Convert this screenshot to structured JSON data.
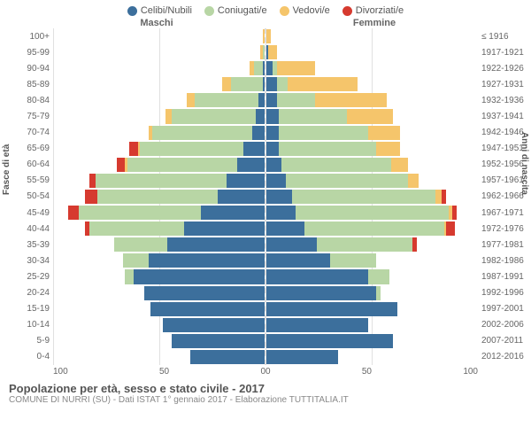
{
  "legend": [
    {
      "label": "Celibi/Nubili",
      "color": "#3c6f9c"
    },
    {
      "label": "Coniugati/e",
      "color": "#b8d6a5"
    },
    {
      "label": "Vedovi/e",
      "color": "#f5c56b"
    },
    {
      "label": "Divorziati/e",
      "color": "#d63a2f"
    }
  ],
  "headers": {
    "left": "Maschi",
    "right": "Femmine"
  },
  "axis_left_title": "Fasce di età",
  "axis_right_title": "Anni di nascita",
  "x_max": 100,
  "x_ticks_left": [
    "100",
    "50",
    "0"
  ],
  "x_ticks_right": [
    "0",
    "50",
    "100"
  ],
  "footer_title": "Popolazione per età, sesso e stato civile - 2017",
  "footer_sub": "COMUNE DI NURRI (SU) - Dati ISTAT 1° gennaio 2017 - Elaborazione TUTTITALIA.IT",
  "age_labels": [
    "100+",
    "95-99",
    "90-94",
    "85-89",
    "80-84",
    "75-79",
    "70-74",
    "65-69",
    "60-64",
    "55-59",
    "50-54",
    "45-49",
    "40-44",
    "35-39",
    "30-34",
    "25-29",
    "20-24",
    "15-19",
    "10-14",
    "5-9",
    "0-4"
  ],
  "birth_labels": [
    "≤ 1916",
    "1917-1921",
    "1922-1926",
    "1927-1931",
    "1932-1936",
    "1937-1941",
    "1942-1946",
    "1947-1951",
    "1952-1956",
    "1957-1961",
    "1962-1966",
    "1967-1971",
    "1972-1976",
    "1977-1981",
    "1982-1986",
    "1987-1991",
    "1992-1996",
    "1997-2001",
    "2002-2006",
    "2007-2011",
    "2012-2016"
  ],
  "pyramid": [
    {
      "m": {
        "cel": 0,
        "con": 0,
        "ved": 1,
        "div": 0
      },
      "f": {
        "cel": 0,
        "con": 0,
        "ved": 2,
        "div": 0
      }
    },
    {
      "m": {
        "cel": 0,
        "con": 1,
        "ved": 1,
        "div": 0
      },
      "f": {
        "cel": 1,
        "con": 0,
        "ved": 4,
        "div": 0
      }
    },
    {
      "m": {
        "cel": 1,
        "con": 4,
        "ved": 2,
        "div": 0
      },
      "f": {
        "cel": 3,
        "con": 2,
        "ved": 18,
        "div": 0
      }
    },
    {
      "m": {
        "cel": 1,
        "con": 15,
        "ved": 4,
        "div": 0
      },
      "f": {
        "cel": 5,
        "con": 5,
        "ved": 33,
        "div": 0
      }
    },
    {
      "m": {
        "cel": 3,
        "con": 30,
        "ved": 4,
        "div": 0
      },
      "f": {
        "cel": 5,
        "con": 18,
        "ved": 34,
        "div": 0
      }
    },
    {
      "m": {
        "cel": 4,
        "con": 40,
        "ved": 3,
        "div": 0
      },
      "f": {
        "cel": 6,
        "con": 32,
        "ved": 22,
        "div": 0
      }
    },
    {
      "m": {
        "cel": 6,
        "con": 47,
        "ved": 2,
        "div": 0
      },
      "f": {
        "cel": 6,
        "con": 42,
        "ved": 15,
        "div": 0
      }
    },
    {
      "m": {
        "cel": 10,
        "con": 49,
        "ved": 1,
        "div": 4
      },
      "f": {
        "cel": 6,
        "con": 46,
        "ved": 11,
        "div": 0
      }
    },
    {
      "m": {
        "cel": 13,
        "con": 52,
        "ved": 1,
        "div": 4
      },
      "f": {
        "cel": 7,
        "con": 52,
        "ved": 8,
        "div": 0
      }
    },
    {
      "m": {
        "cel": 18,
        "con": 62,
        "ved": 0,
        "div": 3
      },
      "f": {
        "cel": 9,
        "con": 58,
        "ved": 5,
        "div": 0
      }
    },
    {
      "m": {
        "cel": 22,
        "con": 57,
        "ved": 0,
        "div": 6
      },
      "f": {
        "cel": 12,
        "con": 68,
        "ved": 3,
        "div": 2
      }
    },
    {
      "m": {
        "cel": 30,
        "con": 58,
        "ved": 0,
        "div": 5
      },
      "f": {
        "cel": 14,
        "con": 72,
        "ved": 2,
        "div": 2
      }
    },
    {
      "m": {
        "cel": 38,
        "con": 45,
        "ved": 0,
        "div": 2
      },
      "f": {
        "cel": 18,
        "con": 66,
        "ved": 1,
        "div": 4
      }
    },
    {
      "m": {
        "cel": 46,
        "con": 25,
        "ved": 0,
        "div": 0
      },
      "f": {
        "cel": 24,
        "con": 45,
        "ved": 0,
        "div": 2
      }
    },
    {
      "m": {
        "cel": 55,
        "con": 12,
        "ved": 0,
        "div": 0
      },
      "f": {
        "cel": 30,
        "con": 22,
        "ved": 0,
        "div": 0
      }
    },
    {
      "m": {
        "cel": 62,
        "con": 4,
        "ved": 0,
        "div": 0
      },
      "f": {
        "cel": 48,
        "con": 10,
        "ved": 0,
        "div": 0
      }
    },
    {
      "m": {
        "cel": 57,
        "con": 0,
        "ved": 0,
        "div": 0
      },
      "f": {
        "cel": 52,
        "con": 2,
        "ved": 0,
        "div": 0
      }
    },
    {
      "m": {
        "cel": 54,
        "con": 0,
        "ved": 0,
        "div": 0
      },
      "f": {
        "cel": 62,
        "con": 0,
        "ved": 0,
        "div": 0
      }
    },
    {
      "m": {
        "cel": 48,
        "con": 0,
        "ved": 0,
        "div": 0
      },
      "f": {
        "cel": 48,
        "con": 0,
        "ved": 0,
        "div": 0
      }
    },
    {
      "m": {
        "cel": 44,
        "con": 0,
        "ved": 0,
        "div": 0
      },
      "f": {
        "cel": 60,
        "con": 0,
        "ved": 0,
        "div": 0
      }
    },
    {
      "m": {
        "cel": 35,
        "con": 0,
        "ved": 0,
        "div": 0
      },
      "f": {
        "cel": 34,
        "con": 0,
        "ved": 0,
        "div": 0
      }
    }
  ]
}
